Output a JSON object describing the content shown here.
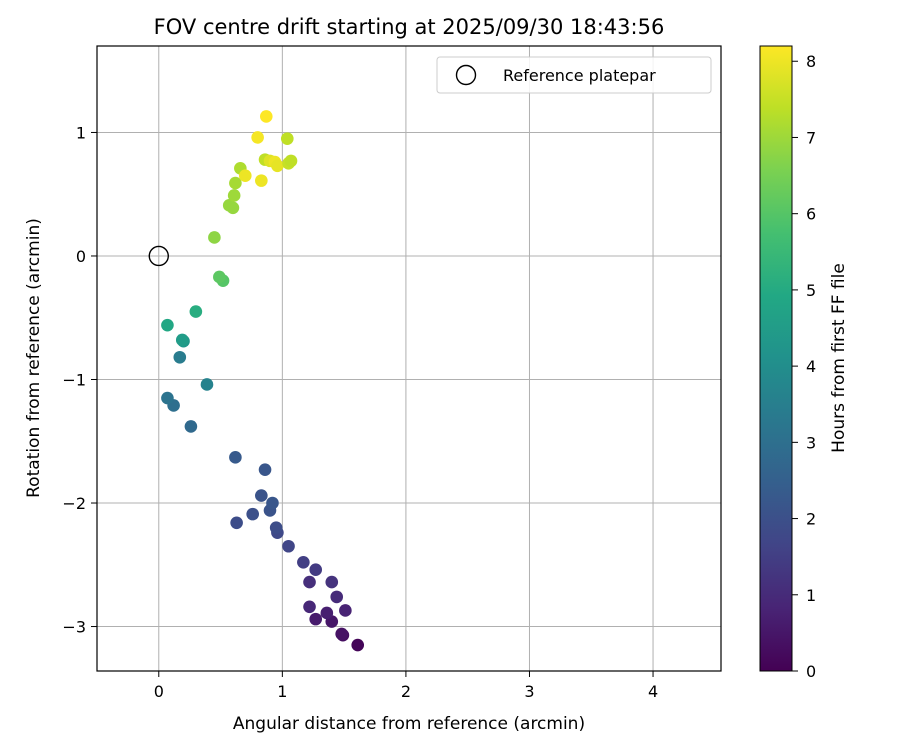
{
  "chart_data": {
    "type": "scatter",
    "title": "FOV centre drift starting at 2025/09/30 18:43:56",
    "xlabel": "Angular distance from reference (arcmin)",
    "ylabel": "Rotation from reference (arcmin)",
    "xlim": [
      -0.5,
      4.55
    ],
    "ylim": [
      -3.36,
      1.7
    ],
    "xticks": [
      0,
      1,
      2,
      3,
      4
    ],
    "yticks": [
      -3,
      -2,
      -1,
      0,
      1
    ],
    "xtick_labels": [
      "0",
      "1",
      "2",
      "3",
      "4"
    ],
    "ytick_labels": [
      "−3",
      "−2",
      "−1",
      "0",
      "1"
    ],
    "grid": true,
    "legend": {
      "position": "top-right",
      "label": "Reference platepar"
    },
    "reference_point": {
      "x": 0,
      "y": 0
    },
    "colorbar": {
      "label": "Hours from first FF file",
      "min": 0,
      "max": 8.2,
      "ticks": [
        0,
        1,
        2,
        3,
        4,
        5,
        6,
        7,
        8
      ],
      "tick_labels": [
        "0",
        "1",
        "2",
        "3",
        "4",
        "5",
        "6",
        "7",
        "8"
      ],
      "colormap": "viridis"
    },
    "points": [
      {
        "x": 1.61,
        "y": -3.15,
        "h": 0.1
      },
      {
        "x": 1.49,
        "y": -3.07,
        "h": 0.3
      },
      {
        "x": 1.48,
        "y": -3.06,
        "h": 0.4
      },
      {
        "x": 1.4,
        "y": -2.96,
        "h": 0.5
      },
      {
        "x": 1.27,
        "y": -2.94,
        "h": 0.6
      },
      {
        "x": 1.36,
        "y": -2.89,
        "h": 0.7
      },
      {
        "x": 1.51,
        "y": -2.87,
        "h": 0.8
      },
      {
        "x": 1.22,
        "y": -2.84,
        "h": 0.9
      },
      {
        "x": 1.44,
        "y": -2.76,
        "h": 1.0
      },
      {
        "x": 1.22,
        "y": -2.64,
        "h": 1.1
      },
      {
        "x": 1.4,
        "y": -2.64,
        "h": 1.2
      },
      {
        "x": 1.27,
        "y": -2.54,
        "h": 1.4
      },
      {
        "x": 1.17,
        "y": -2.48,
        "h": 1.5
      },
      {
        "x": 1.05,
        "y": -2.35,
        "h": 1.7
      },
      {
        "x": 0.96,
        "y": -2.24,
        "h": 1.8
      },
      {
        "x": 0.95,
        "y": -2.2,
        "h": 1.9
      },
      {
        "x": 0.63,
        "y": -2.16,
        "h": 1.9
      },
      {
        "x": 0.76,
        "y": -2.09,
        "h": 2.0
      },
      {
        "x": 0.9,
        "y": -2.06,
        "h": 2.1
      },
      {
        "x": 0.92,
        "y": -2.0,
        "h": 2.2
      },
      {
        "x": 0.83,
        "y": -1.94,
        "h": 2.1
      },
      {
        "x": 0.86,
        "y": -1.73,
        "h": 2.2
      },
      {
        "x": 0.62,
        "y": -1.63,
        "h": 2.3
      },
      {
        "x": 0.26,
        "y": -1.38,
        "h": 2.8
      },
      {
        "x": 0.12,
        "y": -1.21,
        "h": 3.0
      },
      {
        "x": 0.07,
        "y": -1.15,
        "h": 3.1
      },
      {
        "x": 0.39,
        "y": -1.04,
        "h": 3.6
      },
      {
        "x": 0.17,
        "y": -0.82,
        "h": 3.4
      },
      {
        "x": 0.2,
        "y": -0.69,
        "h": 4.3
      },
      {
        "x": 0.19,
        "y": -0.68,
        "h": 4.5
      },
      {
        "x": 0.07,
        "y": -0.56,
        "h": 4.9
      },
      {
        "x": 0.3,
        "y": -0.45,
        "h": 5.1
      },
      {
        "x": 0.52,
        "y": -0.2,
        "h": 6.0
      },
      {
        "x": 0.49,
        "y": -0.17,
        "h": 6.1
      },
      {
        "x": 0.45,
        "y": 0.15,
        "h": 6.8
      },
      {
        "x": 0.6,
        "y": 0.39,
        "h": 6.9
      },
      {
        "x": 0.57,
        "y": 0.41,
        "h": 6.9
      },
      {
        "x": 0.61,
        "y": 0.49,
        "h": 7.0
      },
      {
        "x": 0.62,
        "y": 0.59,
        "h": 7.1
      },
      {
        "x": 0.66,
        "y": 0.71,
        "h": 7.2
      },
      {
        "x": 0.7,
        "y": 0.65,
        "h": 8.0
      },
      {
        "x": 0.83,
        "y": 0.61,
        "h": 8.0
      },
      {
        "x": 0.86,
        "y": 0.78,
        "h": 7.4
      },
      {
        "x": 0.9,
        "y": 0.77,
        "h": 7.8
      },
      {
        "x": 0.94,
        "y": 0.76,
        "h": 8.0
      },
      {
        "x": 0.96,
        "y": 0.73,
        "h": 7.9
      },
      {
        "x": 1.05,
        "y": 0.75,
        "h": 7.5
      },
      {
        "x": 1.07,
        "y": 0.77,
        "h": 7.4
      },
      {
        "x": 1.04,
        "y": 0.95,
        "h": 7.4
      },
      {
        "x": 0.8,
        "y": 0.96,
        "h": 8.1
      },
      {
        "x": 0.87,
        "y": 1.13,
        "h": 8.2
      }
    ]
  }
}
